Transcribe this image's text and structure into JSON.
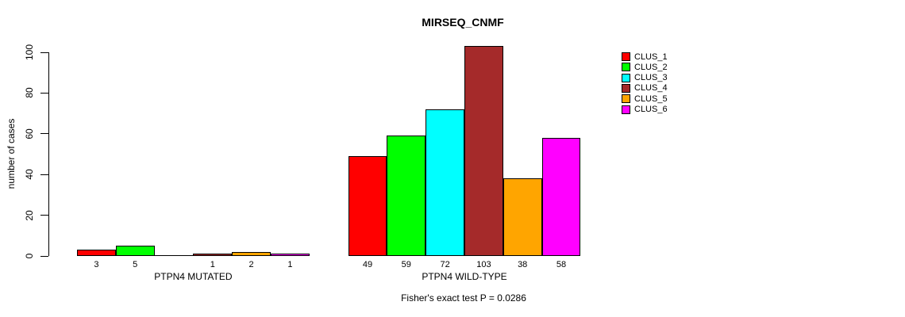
{
  "chart_data": {
    "type": "bar",
    "title": "MIRSEQ_CNMF",
    "ylabel": "number of cases",
    "xlabel": "",
    "ylim": [
      0,
      100
    ],
    "yticks": [
      0,
      20,
      40,
      60,
      80,
      100
    ],
    "grid": false,
    "legend_position": "right",
    "value_labels_shown": true,
    "zero_values_unlabeled": true,
    "groups": [
      {
        "label": "PTPN4 MUTATED",
        "values": [
          3,
          5,
          0,
          1,
          2,
          1
        ]
      },
      {
        "label": "PTPN4 WILD-TYPE",
        "values": [
          49,
          59,
          72,
          103,
          38,
          58
        ]
      }
    ],
    "series": [
      {
        "name": "CLUS_1",
        "color": "#FF0000"
      },
      {
        "name": "CLUS_2",
        "color": "#00FF00"
      },
      {
        "name": "CLUS_3",
        "color": "#00FFFF"
      },
      {
        "name": "CLUS_4",
        "color": "#A52A2A"
      },
      {
        "name": "CLUS_5",
        "color": "#FFA500"
      },
      {
        "name": "CLUS_6",
        "color": "#FF00FF"
      }
    ],
    "annotation": "Fisher's exact test P = 0.0286"
  }
}
